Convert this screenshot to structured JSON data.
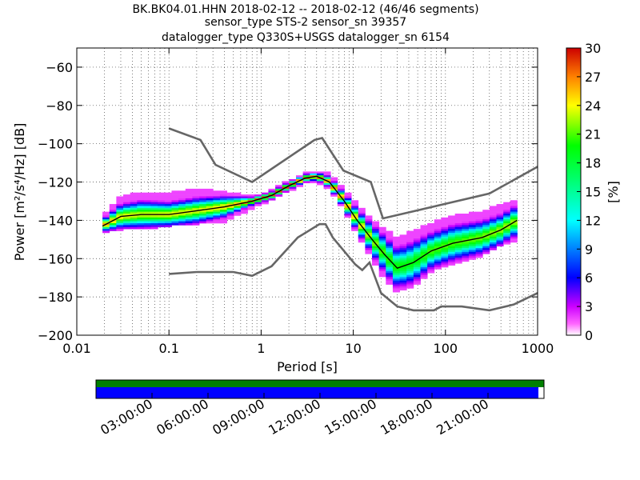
{
  "title_lines": [
    "BK.BK04.01.HHN   2018-02-12 -- 2018-02-12  (46/46 segments)",
    "sensor_type STS-2 sensor_sn 39357",
    "datalogger_type Q330S+USGS datalogger_sn 6154"
  ],
  "chart_data": {
    "type": "heatmap",
    "xlabel": "Period [s]",
    "ylabel": "Power [m²/s⁴/Hz] [dB]",
    "xscale": "log",
    "xlim": [
      0.01,
      1000
    ],
    "ylim": [
      -200,
      -50
    ],
    "x_ticks": [
      0.01,
      0.1,
      1,
      10,
      100,
      1000
    ],
    "x_tick_labels": [
      "0.01",
      "0.1",
      "1",
      "10",
      "100",
      "1000"
    ],
    "y_ticks": [
      -60,
      -80,
      -100,
      -120,
      -140,
      -160,
      -180,
      -200
    ],
    "y_tick_labels": [
      "−60",
      "−80",
      "−100",
      "−120",
      "−140",
      "−160",
      "−180",
      "−200"
    ],
    "grid": true,
    "colorbar": {
      "label": "[%]",
      "range": [
        0,
        30
      ],
      "ticks": [
        0,
        3,
        6,
        9,
        12,
        15,
        18,
        21,
        24,
        27,
        30
      ],
      "tick_labels": [
        "0",
        "3",
        "6",
        "9",
        "12",
        "15",
        "18",
        "21",
        "24",
        "27",
        "30"
      ]
    },
    "reference_curves": [
      {
        "points": [
          [
            0.1,
            -92
          ],
          [
            0.22,
            -98
          ],
          [
            0.32,
            -111
          ],
          [
            0.8,
            -120
          ],
          [
            3.8,
            -98
          ],
          [
            4.6,
            -97
          ],
          [
            7.8,
            -114
          ],
          [
            15.5,
            -120
          ],
          [
            21,
            -139
          ],
          [
            300,
            -126
          ],
          [
            1000,
            -112
          ]
        ]
      },
      {
        "points": [
          [
            0.1,
            -168
          ],
          [
            0.2,
            -167
          ],
          [
            0.5,
            -167
          ],
          [
            0.8,
            -169
          ],
          [
            1.3,
            -164
          ],
          [
            2.5,
            -149
          ],
          [
            4.3,
            -142
          ],
          [
            5,
            -142
          ],
          [
            6,
            -149
          ],
          [
            10.5,
            -163
          ],
          [
            12.5,
            -166
          ],
          [
            15,
            -162
          ],
          [
            20,
            -178
          ],
          [
            30,
            -185
          ],
          [
            45,
            -187
          ],
          [
            75,
            -187
          ],
          [
            90,
            -185
          ],
          [
            150,
            -185
          ],
          [
            300,
            -187
          ],
          [
            550,
            -184
          ],
          [
            1000,
            -178
          ]
        ]
      }
    ],
    "median_curve": {
      "points": [
        [
          0.019,
          -143
        ],
        [
          0.03,
          -138
        ],
        [
          0.05,
          -137
        ],
        [
          0.1,
          -137
        ],
        [
          0.2,
          -135
        ],
        [
          0.4,
          -133
        ],
        [
          0.8,
          -130
        ],
        [
          1.3,
          -127
        ],
        [
          2,
          -122
        ],
        [
          3,
          -118
        ],
        [
          4,
          -117
        ],
        [
          5.5,
          -120
        ],
        [
          8,
          -130
        ],
        [
          11,
          -140
        ],
        [
          16,
          -150
        ],
        [
          22,
          -158
        ],
        [
          30,
          -165
        ],
        [
          45,
          -162
        ],
        [
          70,
          -156
        ],
        [
          120,
          -152
        ],
        [
          250,
          -149
        ],
        [
          400,
          -145
        ],
        [
          600,
          -140
        ]
      ]
    },
    "density_band": {
      "x": [
        0.019,
        0.03,
        0.05,
        0.1,
        0.2,
        0.4,
        0.8,
        1.3,
        2,
        3,
        4,
        5.5,
        8,
        11,
        16,
        22,
        30,
        45,
        70,
        120,
        250,
        400,
        600
      ],
      "upper_db": [
        -138,
        -128,
        -126,
        -126,
        -124,
        -126,
        -128,
        -125,
        -120,
        -116,
        -115,
        -116,
        -124,
        -132,
        -140,
        -145,
        -150,
        -146,
        -142,
        -138,
        -136,
        -132,
        -130
      ],
      "lower_db": [
        -146,
        -144,
        -144,
        -142,
        -141,
        -140,
        -133,
        -129,
        -124,
        -120,
        -120,
        -123,
        -134,
        -147,
        -160,
        -170,
        -177,
        -174,
        -166,
        -162,
        -158,
        -152,
        -150
      ]
    },
    "time_axis": {
      "tick_labels": [
        "03:00:00",
        "06:00:00",
        "09:00:00",
        "12:00:00",
        "15:00:00",
        "18:00:00",
        "21:00:00"
      ],
      "hours": [
        3,
        6,
        9,
        12,
        15,
        18,
        21
      ],
      "coverage_hours": [
        0,
        23.7
      ],
      "data_availability_hours": [
        0,
        24
      ],
      "coverage_color": "#0000ff",
      "availability_color": "#008000"
    }
  }
}
